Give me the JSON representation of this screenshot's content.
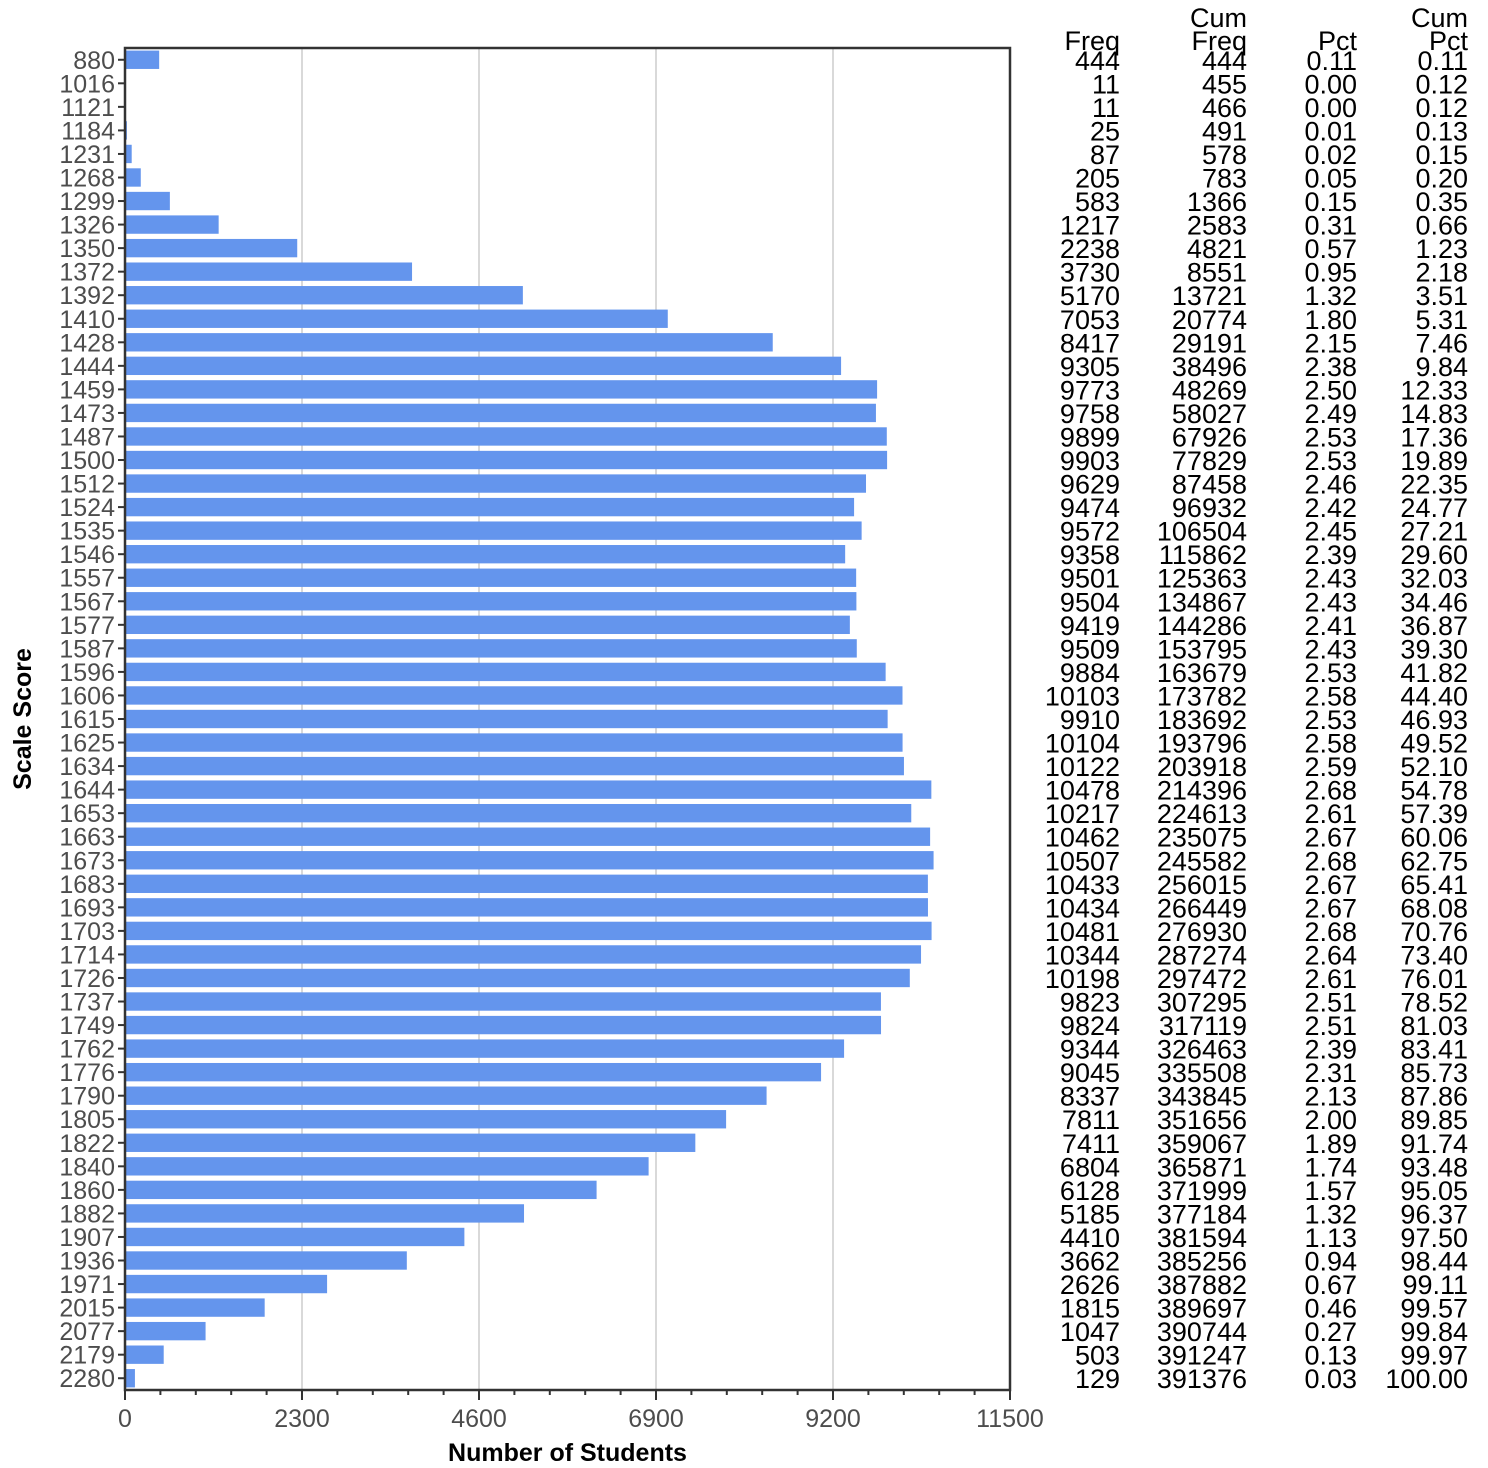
{
  "chart_data": {
    "type": "bar",
    "orientation": "horizontal",
    "xlabel": "Number of Students",
    "ylabel": "Scale Score",
    "xlim": [
      0,
      11500
    ],
    "xticks": [
      "0",
      "2300",
      "4600",
      "6900",
      "9200",
      "11500"
    ],
    "grid": "vertical",
    "bar_color": "#6495ED",
    "categories": [
      "880",
      "1016",
      "1121",
      "1184",
      "1231",
      "1268",
      "1299",
      "1326",
      "1350",
      "1372",
      "1392",
      "1410",
      "1428",
      "1444",
      "1459",
      "1473",
      "1487",
      "1500",
      "1512",
      "1524",
      "1535",
      "1546",
      "1557",
      "1567",
      "1577",
      "1587",
      "1596",
      "1606",
      "1615",
      "1625",
      "1634",
      "1644",
      "1653",
      "1663",
      "1673",
      "1683",
      "1693",
      "1703",
      "1714",
      "1726",
      "1737",
      "1749",
      "1762",
      "1776",
      "1790",
      "1805",
      "1822",
      "1840",
      "1860",
      "1882",
      "1907",
      "1936",
      "1971",
      "2015",
      "2077",
      "2179",
      "2280"
    ],
    "values": [
      444,
      11,
      11,
      25,
      87,
      205,
      583,
      1217,
      2238,
      3730,
      5170,
      7053,
      8417,
      9305,
      9773,
      9758,
      9899,
      9903,
      9629,
      9474,
      9572,
      9358,
      9501,
      9504,
      9419,
      9509,
      9884,
      10103,
      9910,
      10104,
      10122,
      10478,
      10217,
      10462,
      10507,
      10433,
      10434,
      10481,
      10344,
      10198,
      9823,
      9824,
      9344,
      9045,
      8337,
      7811,
      7411,
      6804,
      6128,
      5185,
      4410,
      3662,
      2626,
      1815,
      1047,
      503,
      129
    ],
    "table": {
      "headers": [
        {
          "line1": "",
          "line2": "Freq"
        },
        {
          "line1": "Cum",
          "line2": "Freq"
        },
        {
          "line1": "",
          "line2": "Pct"
        },
        {
          "line1": "Cum",
          "line2": "Pct"
        }
      ],
      "freq": [
        "444",
        "11",
        "11",
        "25",
        "87",
        "205",
        "583",
        "1217",
        "2238",
        "3730",
        "5170",
        "7053",
        "8417",
        "9305",
        "9773",
        "9758",
        "9899",
        "9903",
        "9629",
        "9474",
        "9572",
        "9358",
        "9501",
        "9504",
        "9419",
        "9509",
        "9884",
        "10103",
        "9910",
        "10104",
        "10122",
        "10478",
        "10217",
        "10462",
        "10507",
        "10433",
        "10434",
        "10481",
        "10344",
        "10198",
        "9823",
        "9824",
        "9344",
        "9045",
        "8337",
        "7811",
        "7411",
        "6804",
        "6128",
        "5185",
        "4410",
        "3662",
        "2626",
        "1815",
        "1047",
        "503",
        "129"
      ],
      "cum_freq": [
        "444",
        "455",
        "466",
        "491",
        "578",
        "783",
        "1366",
        "2583",
        "4821",
        "8551",
        "13721",
        "20774",
        "29191",
        "38496",
        "48269",
        "58027",
        "67926",
        "77829",
        "87458",
        "96932",
        "106504",
        "115862",
        "125363",
        "134867",
        "144286",
        "153795",
        "163679",
        "173782",
        "183692",
        "193796",
        "203918",
        "214396",
        "224613",
        "235075",
        "245582",
        "256015",
        "266449",
        "276930",
        "287274",
        "297472",
        "307295",
        "317119",
        "326463",
        "335508",
        "343845",
        "351656",
        "359067",
        "365871",
        "371999",
        "377184",
        "381594",
        "385256",
        "387882",
        "389697",
        "390744",
        "391247",
        "391376"
      ],
      "pct": [
        "0.11",
        "0.00",
        "0.00",
        "0.01",
        "0.02",
        "0.05",
        "0.15",
        "0.31",
        "0.57",
        "0.95",
        "1.32",
        "1.80",
        "2.15",
        "2.38",
        "2.50",
        "2.49",
        "2.53",
        "2.53",
        "2.46",
        "2.42",
        "2.45",
        "2.39",
        "2.43",
        "2.43",
        "2.41",
        "2.43",
        "2.53",
        "2.58",
        "2.53",
        "2.58",
        "2.59",
        "2.68",
        "2.61",
        "2.67",
        "2.68",
        "2.67",
        "2.67",
        "2.68",
        "2.64",
        "2.61",
        "2.51",
        "2.51",
        "2.39",
        "2.31",
        "2.13",
        "2.00",
        "1.89",
        "1.74",
        "1.57",
        "1.32",
        "1.13",
        "0.94",
        "0.67",
        "0.46",
        "0.27",
        "0.13",
        "0.03"
      ],
      "cum_pct": [
        "0.11",
        "0.12",
        "0.12",
        "0.13",
        "0.15",
        "0.20",
        "0.35",
        "0.66",
        "1.23",
        "2.18",
        "3.51",
        "5.31",
        "7.46",
        "9.84",
        "12.33",
        "14.83",
        "17.36",
        "19.89",
        "22.35",
        "24.77",
        "27.21",
        "29.60",
        "32.03",
        "34.46",
        "36.87",
        "39.30",
        "41.82",
        "44.40",
        "46.93",
        "49.52",
        "52.10",
        "54.78",
        "57.39",
        "60.06",
        "62.75",
        "65.41",
        "68.08",
        "70.76",
        "73.40",
        "76.01",
        "78.52",
        "81.03",
        "83.41",
        "85.73",
        "87.86",
        "89.85",
        "91.74",
        "93.48",
        "95.05",
        "96.37",
        "97.50",
        "98.44",
        "99.11",
        "99.57",
        "99.84",
        "99.97",
        "100.00"
      ]
    }
  }
}
